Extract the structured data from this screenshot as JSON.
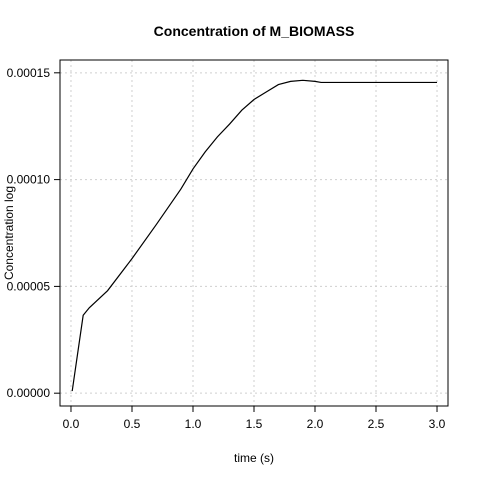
{
  "chart_data": {
    "type": "line",
    "title": "Concentration of M_BIOMASS",
    "xlabel": "time (s)",
    "ylabel": "Concentration log",
    "xlim": [
      -0.09,
      3.09
    ],
    "ylim": [
      -6e-06,
      0.000156
    ],
    "x_ticks": [
      0.0,
      0.5,
      1.0,
      1.5,
      2.0,
      2.5,
      3.0
    ],
    "x_tick_labels": [
      "0.0",
      "0.5",
      "1.0",
      "1.5",
      "2.0",
      "2.5",
      "3.0"
    ],
    "y_ticks": [
      0.0,
      5e-05,
      0.0001,
      0.00015
    ],
    "y_tick_labels": [
      "0.00000",
      "0.00005",
      "0.00010",
      "0.00015"
    ],
    "grid": true,
    "series": [
      {
        "x": [
          0.01,
          0.1,
          0.15,
          0.3,
          0.5,
          0.7,
          0.9,
          1.0,
          1.1,
          1.2,
          1.3,
          1.4,
          1.5,
          1.6,
          1.7,
          1.8,
          1.9,
          2.0,
          2.05,
          2.2,
          2.5,
          3.0
        ],
        "y": [
          1e-06,
          3.65e-05,
          4e-05,
          4.8e-05,
          6.3e-05,
          7.9e-05,
          9.55e-05,
          0.000105,
          0.000113,
          0.00012,
          0.000126,
          0.0001325,
          0.0001375,
          0.000141,
          0.0001445,
          0.000146,
          0.0001465,
          0.000146,
          0.0001455,
          0.0001455,
          0.0001455,
          0.0001455
        ]
      }
    ]
  }
}
